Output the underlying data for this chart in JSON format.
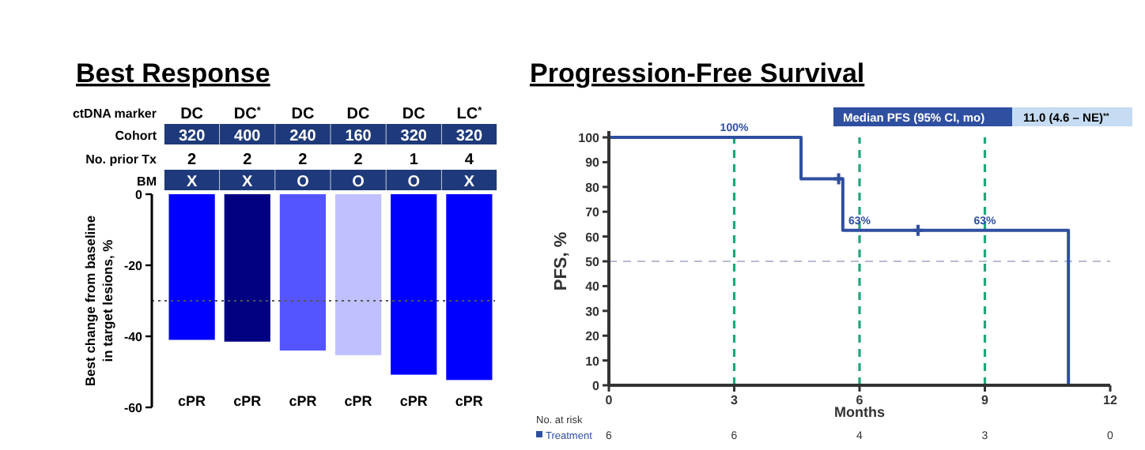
{
  "chart_data": [
    {
      "type": "bar",
      "title": "Best Response",
      "ylabel": "Best change from baseline\nin target lesions, %",
      "categories": [
        "cPR",
        "cPR",
        "cPR",
        "cPR",
        "cPR",
        "cPR"
      ],
      "values": [
        -41,
        -41.5,
        -44,
        -45.3,
        -50.8,
        -52.3
      ],
      "colors": [
        "#0000ff",
        "#000080",
        "#5555ff",
        "#c0c0ff",
        "#0000ff",
        "#0000ff"
      ],
      "ylim": [
        -60,
        0
      ],
      "yticks": [
        0,
        -20,
        -40,
        -60
      ],
      "ref_lines": [
        {
          "axis": "y",
          "value": -30,
          "color": "#555555",
          "line_style": "dotted"
        }
      ],
      "annotations": [
        "ctDNA marker",
        "DC",
        "DC$^{*}$",
        "DC",
        "DC",
        "DC",
        "LC$^{*}$",
        "Cohort",
        "320",
        "400",
        "240",
        "160",
        "320",
        "320",
        "No. prior Tx",
        "2",
        "2",
        "2",
        "2",
        "1",
        "4",
        "BM",
        "X",
        "X",
        "O",
        "O",
        "O",
        "X"
      ],
      "grid": false
    },
    {
      "type": "step",
      "title": "Progression-Free Survival",
      "xlabel": "Months",
      "ylabel": "PFS, %",
      "series": [
        {
          "name": "Treatment",
          "color": "#2f4fa0",
          "x": [
            0,
            4.6,
            5.6,
            11
          ],
          "values": [
            100,
            83.3,
            62.5,
            0
          ]
        },
        {
          "type": "scatter",
          "color": "#2f4fa0",
          "marker": "cross",
          "x": [
            5.5,
            7.4
          ],
          "values": [
            83.3,
            62.5
          ]
        }
      ],
      "xlim": [
        0,
        12
      ],
      "xticks": [
        0,
        3,
        6,
        9,
        12
      ],
      "ylim": [
        0,
        100
      ],
      "yticks": [
        0,
        10,
        20,
        30,
        40,
        50,
        60,
        70,
        80,
        90,
        100
      ],
      "ref_lines": [
        {
          "axis": "y",
          "value": 50,
          "color": "#b8bcd0",
          "line_style": "dashed"
        },
        {
          "axis": "x",
          "value": 3,
          "color": "#1fa67a",
          "line_style": "dashed"
        },
        {
          "axis": "x",
          "value": 6,
          "color": "#1fa67a",
          "line_style": "dashed"
        },
        {
          "axis": "x",
          "value": 9,
          "color": "#1fa67a",
          "line_style": "dashed"
        }
      ],
      "annotations": [
        {
          "text": "100%",
          "x": 3,
          "y": 100
        },
        {
          "text": "63%",
          "x": 6,
          "y": 62.5
        },
        {
          "text": "63%",
          "x": 9,
          "y": 62.5
        },
        "Median PFS (95% CI, mo)",
        "11.0 (4.6 – NE)$^{**}$",
        "No. at risk",
        "6",
        "6",
        "4",
        "3",
        "0"
      ],
      "legend": "bottom left",
      "grid": false
    }
  ]
}
